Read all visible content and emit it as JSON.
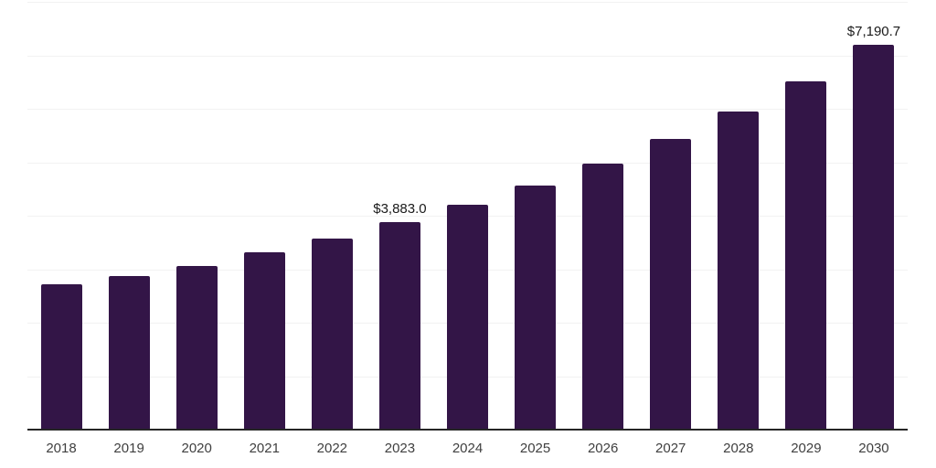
{
  "chart_data": {
    "type": "bar",
    "title": "",
    "xlabel": "",
    "ylabel": "",
    "categories": [
      "2018",
      "2019",
      "2020",
      "2021",
      "2022",
      "2023",
      "2024",
      "2025",
      "2026",
      "2027",
      "2028",
      "2029",
      "2030"
    ],
    "values": [
      2720,
      2880,
      3060,
      3310,
      3570,
      3883.0,
      4210,
      4560,
      4970,
      5430,
      5950,
      6520,
      7190.7
    ],
    "value_labels": {
      "2023": "$3,883.0",
      "2030": "$7,190.7"
    },
    "ylim": [
      0,
      8000
    ],
    "grid": "horizontal",
    "gridline_step": 1000,
    "legend": "none",
    "colors": {
      "bar": "#331547",
      "gridline": "#f2f2f2",
      "axis_line": "#262626",
      "value_label_text": "#1a1a1a",
      "tick_label_text": "#3f3f3f",
      "background": "#ffffff"
    }
  }
}
